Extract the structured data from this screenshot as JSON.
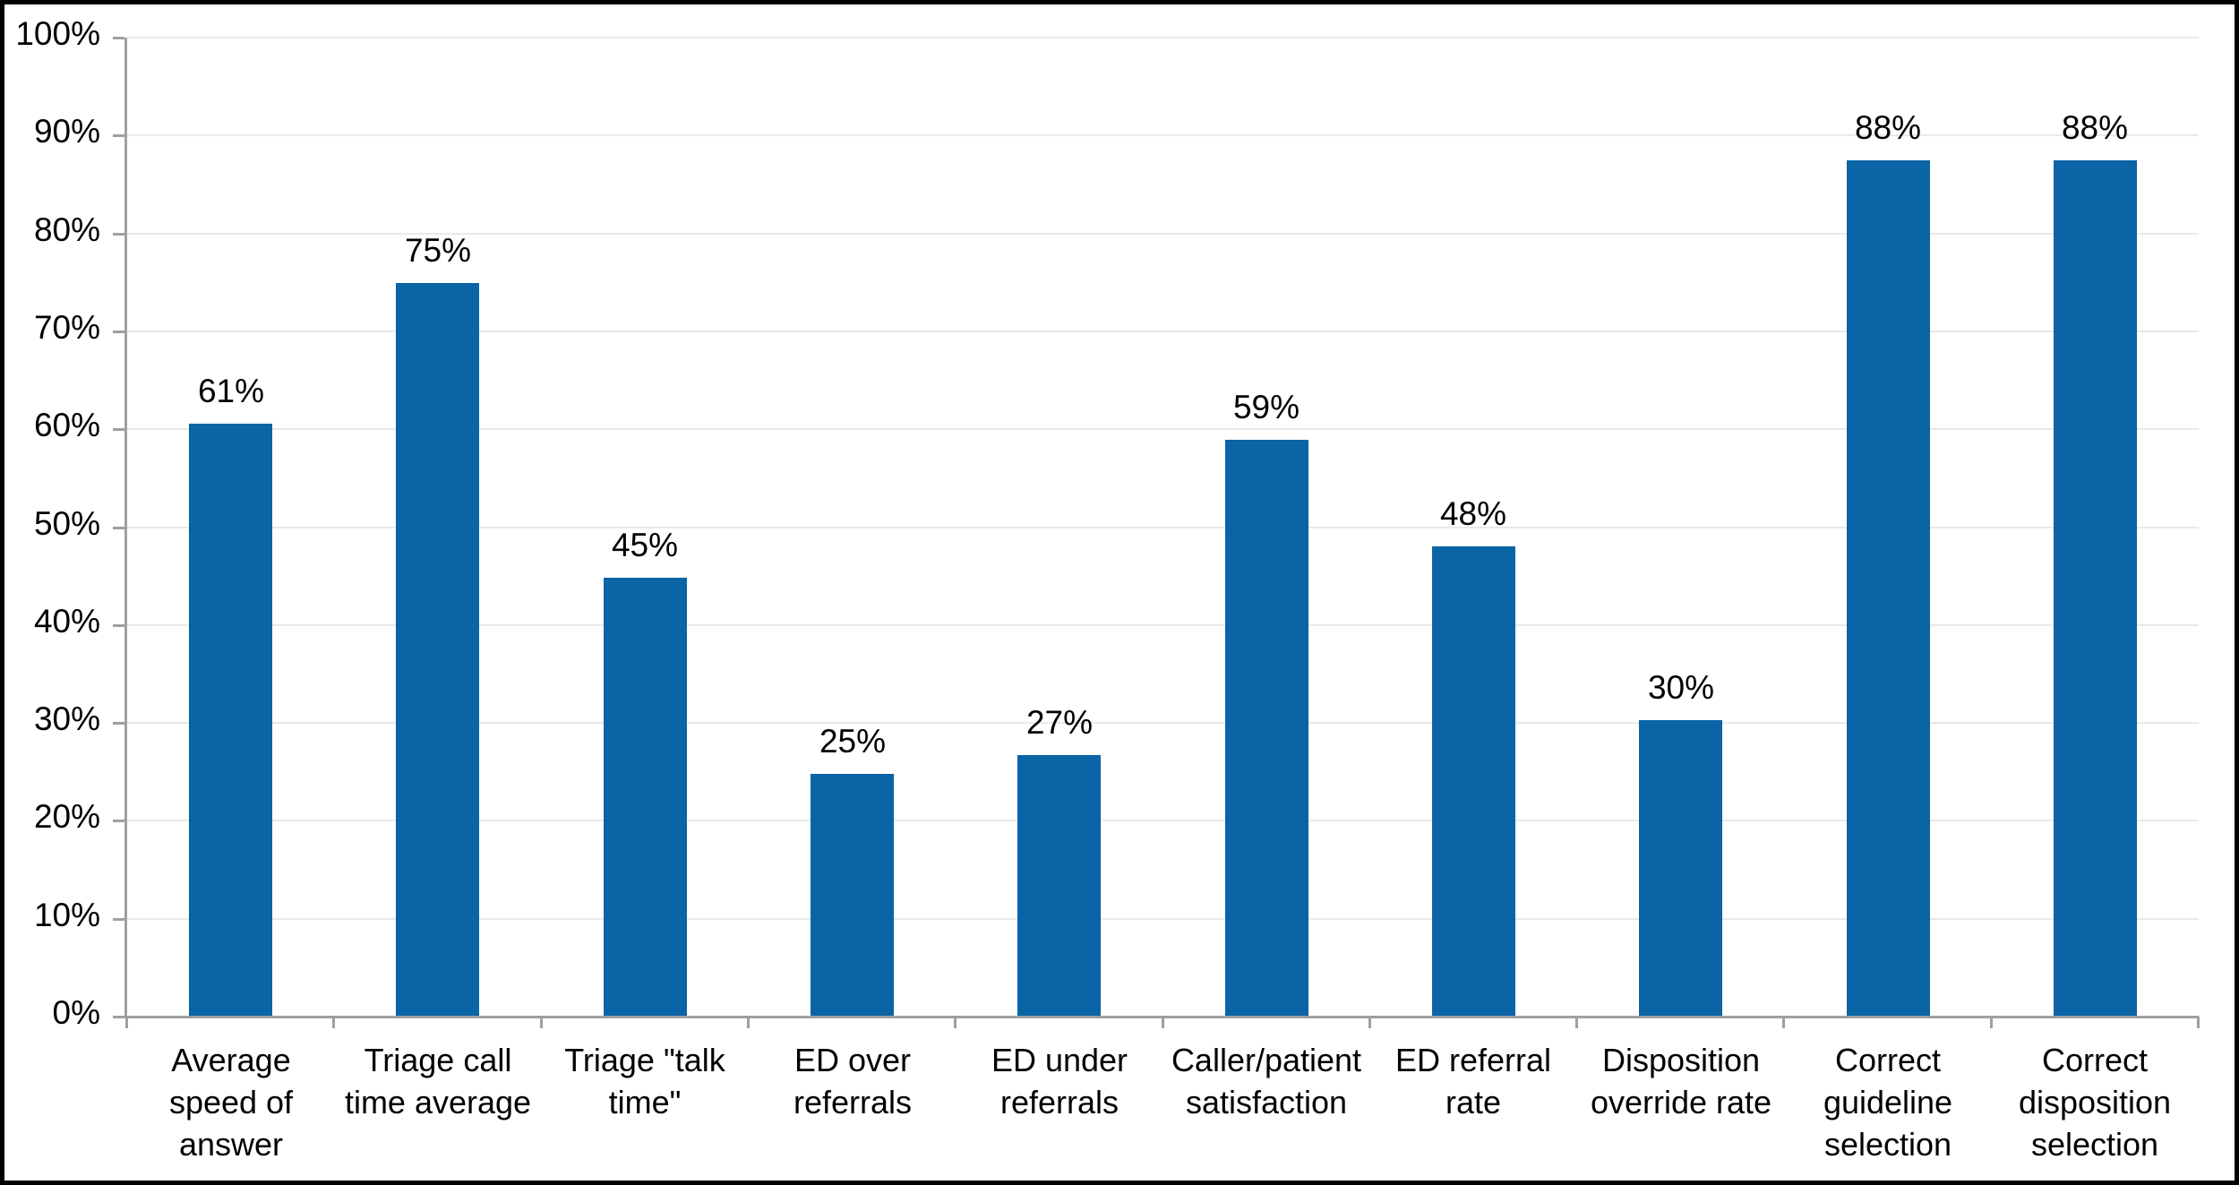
{
  "chart_data": {
    "type": "bar",
    "title": "",
    "xlabel": "",
    "ylabel": "",
    "categories": [
      "Average speed of answer",
      "Triage call time average",
      "Triage \"talk time\"",
      "ED over referrals",
      "ED under referrals",
      "Caller/patient satisfaction",
      "ED referral rate",
      "Disposition override rate",
      "Correct guideline selection",
      "Correct disposition selection"
    ],
    "category_lines": [
      [
        "Average",
        "speed of",
        "answer"
      ],
      [
        "Triage call",
        "time average"
      ],
      [
        "Triage \"talk",
        "time\""
      ],
      [
        "ED over",
        "referrals"
      ],
      [
        "ED under",
        "referrals"
      ],
      [
        "Caller/patient",
        "satisfaction"
      ],
      [
        "ED referral",
        "rate"
      ],
      [
        "Disposition",
        "override rate"
      ],
      [
        "Correct",
        "guideline",
        "selection"
      ],
      [
        "Correct",
        "disposition",
        "selection"
      ]
    ],
    "values": [
      61,
      75,
      45,
      25,
      27,
      59,
      48,
      30,
      88,
      88
    ],
    "data_labels": [
      "61%",
      "75%",
      "45%",
      "25%",
      "27%",
      "59%",
      "48%",
      "30%",
      "88%",
      "88%"
    ],
    "bar_heights_pct": [
      60.6,
      74.9,
      44.8,
      24.8,
      26.7,
      58.9,
      48.0,
      30.3,
      87.5,
      87.5
    ],
    "ylim": [
      0,
      100
    ],
    "y_tick_step": 10,
    "y_tick_labels": [
      "0%",
      "10%",
      "20%",
      "30%",
      "40%",
      "50%",
      "60%",
      "70%",
      "80%",
      "90%",
      "100%"
    ],
    "grid": true,
    "legend_position": "none",
    "colors": {
      "bar": "#0A64A6",
      "axis": "#A0A0A0",
      "gridline": "#E9E9E9",
      "text": "#000000",
      "background": "#FFFFFF",
      "frame_border": "#000000"
    }
  }
}
